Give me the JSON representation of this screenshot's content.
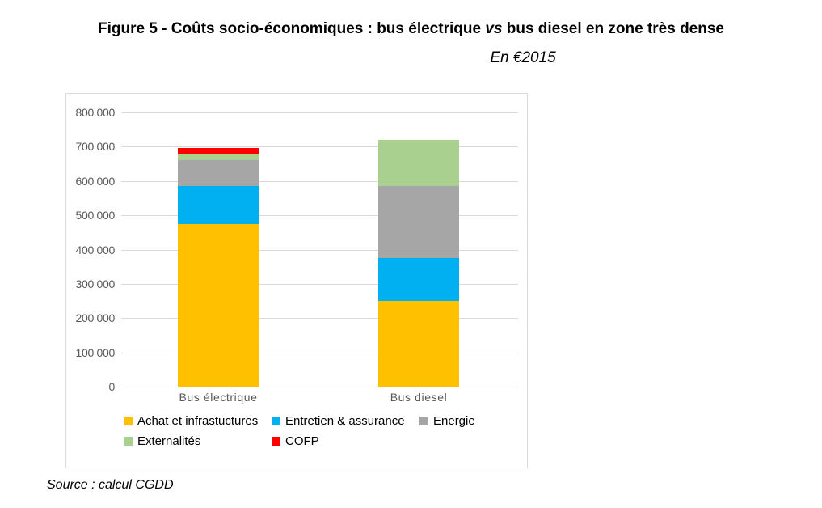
{
  "figure": {
    "title_prefix": "Figure 5 - Coûts socio-économiques : bus électrique",
    "title_vs": "vs",
    "title_suffix": "bus diesel en zone très dense",
    "subtitle": "En €2015",
    "source": "Source : calcul CGDD"
  },
  "chart_data": {
    "type": "bar",
    "stacked": true,
    "title": "Figure 5 - Coûts socio-économiques : bus électrique vs bus diesel en zone très dense",
    "subtitle": "En €2015",
    "unit": "€2015",
    "categories": [
      "Bus électrique",
      "Bus diesel"
    ],
    "series": [
      {
        "name": "Achat et infrastuctures",
        "color": "#FFC000",
        "values": [
          475000,
          250000
        ]
      },
      {
        "name": "Entretien & assurance",
        "color": "#00B0F0",
        "values": [
          110000,
          125000
        ]
      },
      {
        "name": "Energie",
        "color": "#A6A6A6",
        "values": [
          75000,
          210000
        ]
      },
      {
        "name": "Externalités",
        "color": "#A9D08E",
        "values": [
          20000,
          135000
        ]
      },
      {
        "name": "COFP",
        "color": "#FF0000",
        "values": [
          15000,
          0
        ]
      }
    ],
    "totals": [
      695000,
      720000
    ],
    "xlabel": "",
    "ylabel": "",
    "ylim": [
      0,
      800000
    ],
    "ytick_step": 100000,
    "y_tick_labels": [
      "0",
      "100 000",
      "200 000",
      "300 000",
      "400 000",
      "500 000",
      "600 000",
      "700 000",
      "800 000"
    ],
    "grid": true,
    "gridline_color": "#D9D9D9",
    "axis_text_color": "#595959",
    "legend_position": "bottom"
  }
}
